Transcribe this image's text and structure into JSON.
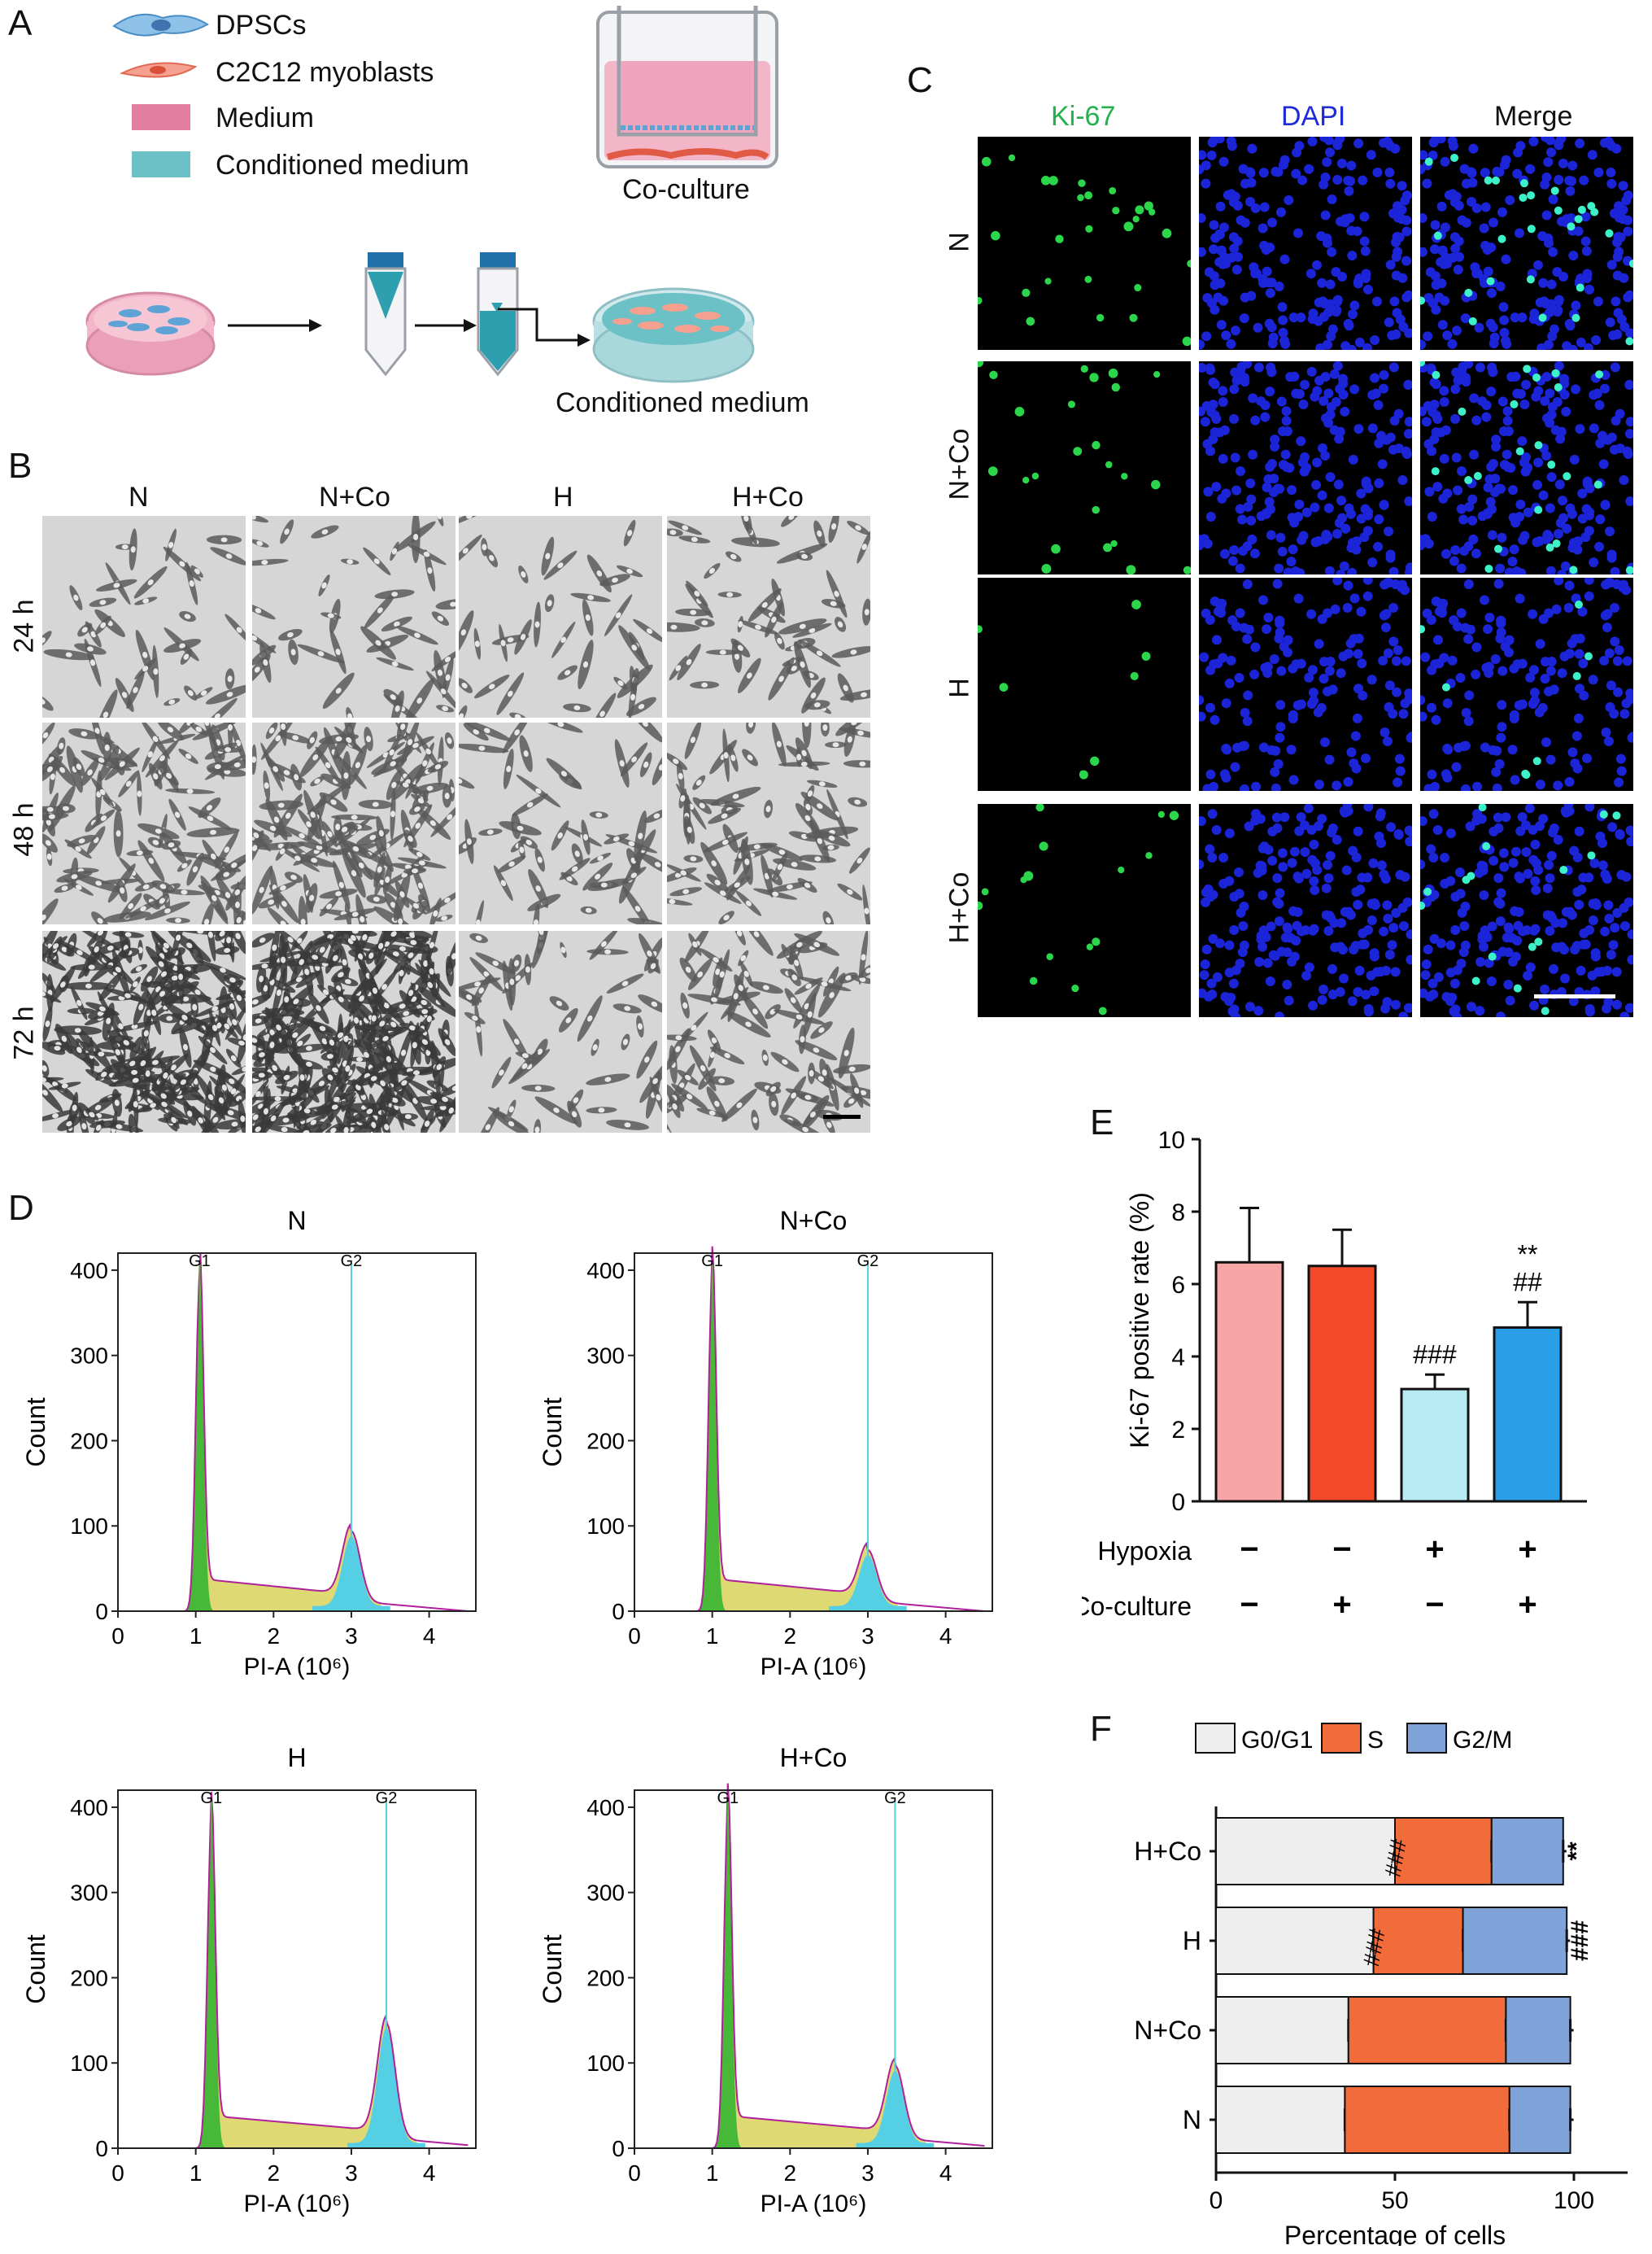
{
  "panels": {
    "A": "A",
    "B": "B",
    "C": "C",
    "D": "D",
    "E": "E",
    "F": "F"
  },
  "panel_a": {
    "legend": [
      {
        "label": "DPSCs",
        "color": "#5fa3d6"
      },
      {
        "label": "C2C12 myoblasts",
        "color": "#f08a7a"
      },
      {
        "label": "Medium",
        "color": "#e27fa0"
      },
      {
        "label": "Conditioned medium",
        "color": "#6cc1c6"
      }
    ],
    "coculture_label": "Co-culture",
    "conditioned_label": "Conditioned medium"
  },
  "panel_b": {
    "columns": [
      "N",
      "N+Co",
      "H",
      "H+Co"
    ],
    "rows": [
      "24 h",
      "48 h",
      "72 h"
    ]
  },
  "panel_c": {
    "columns": [
      "Ki-67",
      "DAPI",
      "Merge"
    ],
    "column_colors": [
      "#22b14c",
      "#1f2bd6",
      "#222222"
    ],
    "rows": [
      "N",
      "N+Co",
      "H",
      "H+Co"
    ]
  },
  "panel_d": {
    "histograms": [
      {
        "title": "N",
        "ylabel": "Count",
        "xlabel": "PI-A (10⁶)",
        "g1": "G1",
        "g2": "G2"
      },
      {
        "title": "N+Co",
        "ylabel": "Count",
        "xlabel": "PI-A (10⁶)",
        "g1": "G1",
        "g2": "G2"
      },
      {
        "title": "H",
        "ylabel": "Count",
        "xlabel": "PI-A (10⁶)",
        "g1": "G1",
        "g2": "G2"
      },
      {
        "title": "H+Co",
        "ylabel": "Count",
        "xlabel": "PI-A (10⁶)",
        "g1": "G1",
        "g2": "G2"
      }
    ],
    "yticks": [
      "0",
      "100",
      "200",
      "300",
      "400"
    ],
    "xticks": [
      "0",
      "1",
      "2",
      "3",
      "4"
    ]
  },
  "chart_data": [
    {
      "type": "line",
      "panel": "D",
      "subplots": [
        {
          "title": "N",
          "g1_peak": [
            1.05,
            390
          ],
          "g2_peak": [
            3.0,
            82
          ],
          "ylim": [
            0,
            420
          ],
          "xlim": [
            0,
            4.6
          ]
        },
        {
          "title": "N+Co",
          "g1_peak": [
            1.0,
            390
          ],
          "g2_peak": [
            3.0,
            60
          ],
          "ylim": [
            0,
            420
          ],
          "xlim": [
            0,
            4.6
          ]
        },
        {
          "title": "H",
          "g1_peak": [
            1.2,
            380
          ],
          "g2_peak": [
            3.45,
            135
          ],
          "ylim": [
            0,
            420
          ],
          "xlim": [
            0,
            4.6
          ]
        },
        {
          "title": "H+Co",
          "g1_peak": [
            1.2,
            390
          ],
          "g2_peak": [
            3.35,
            85
          ],
          "ylim": [
            0,
            420
          ],
          "xlim": [
            0,
            4.6
          ]
        }
      ],
      "xlabel": "PI-A (10⁶)",
      "ylabel": "Count"
    },
    {
      "type": "bar",
      "panel": "E",
      "categories": [
        "N",
        "N+Co",
        "H",
        "H+Co"
      ],
      "values": [
        6.6,
        6.5,
        3.1,
        4.8
      ],
      "errors": [
        1.5,
        1.0,
        0.4,
        0.7
      ],
      "colors": [
        "#f8a5a5",
        "#f44a2a",
        "#b8ecf5",
        "#2a9ee6"
      ],
      "ylabel": "Ki-67 positive rate (%)",
      "ylim": [
        0,
        10
      ],
      "yticks": [
        "0",
        "2",
        "4",
        "6",
        "8",
        "10"
      ],
      "annotations": [
        "",
        "",
        "###",
        "**\n##"
      ],
      "condition_rows": [
        {
          "label": "Hypoxia",
          "signs": [
            "−",
            "−",
            "+",
            "+"
          ]
        },
        {
          "label": "Co-culture",
          "signs": [
            "−",
            "+",
            "−",
            "+"
          ]
        }
      ]
    },
    {
      "type": "bar",
      "panel": "F",
      "orientation": "horizontal-stacked",
      "categories": [
        "H+Co",
        "H",
        "N+Co",
        "N"
      ],
      "series": [
        {
          "name": "G0/G1",
          "color": "#eeeeee",
          "values": [
            50,
            44,
            37,
            36
          ]
        },
        {
          "name": "S",
          "color": "#f26b3a",
          "values": [
            27,
            25,
            44,
            46
          ]
        },
        {
          "name": "G2/M",
          "color": "#7fa2d8",
          "values": [
            20,
            29,
            18,
            17
          ]
        }
      ],
      "xlabel": "Percentage of cells",
      "xticks": [
        "0",
        "50",
        "100"
      ],
      "xlim": [
        0,
        115
      ],
      "annotations": [
        {
          "row": "H+Co",
          "s": "###",
          "end": "**"
        },
        {
          "row": "H",
          "s": "###",
          "end": "###"
        }
      ]
    }
  ]
}
